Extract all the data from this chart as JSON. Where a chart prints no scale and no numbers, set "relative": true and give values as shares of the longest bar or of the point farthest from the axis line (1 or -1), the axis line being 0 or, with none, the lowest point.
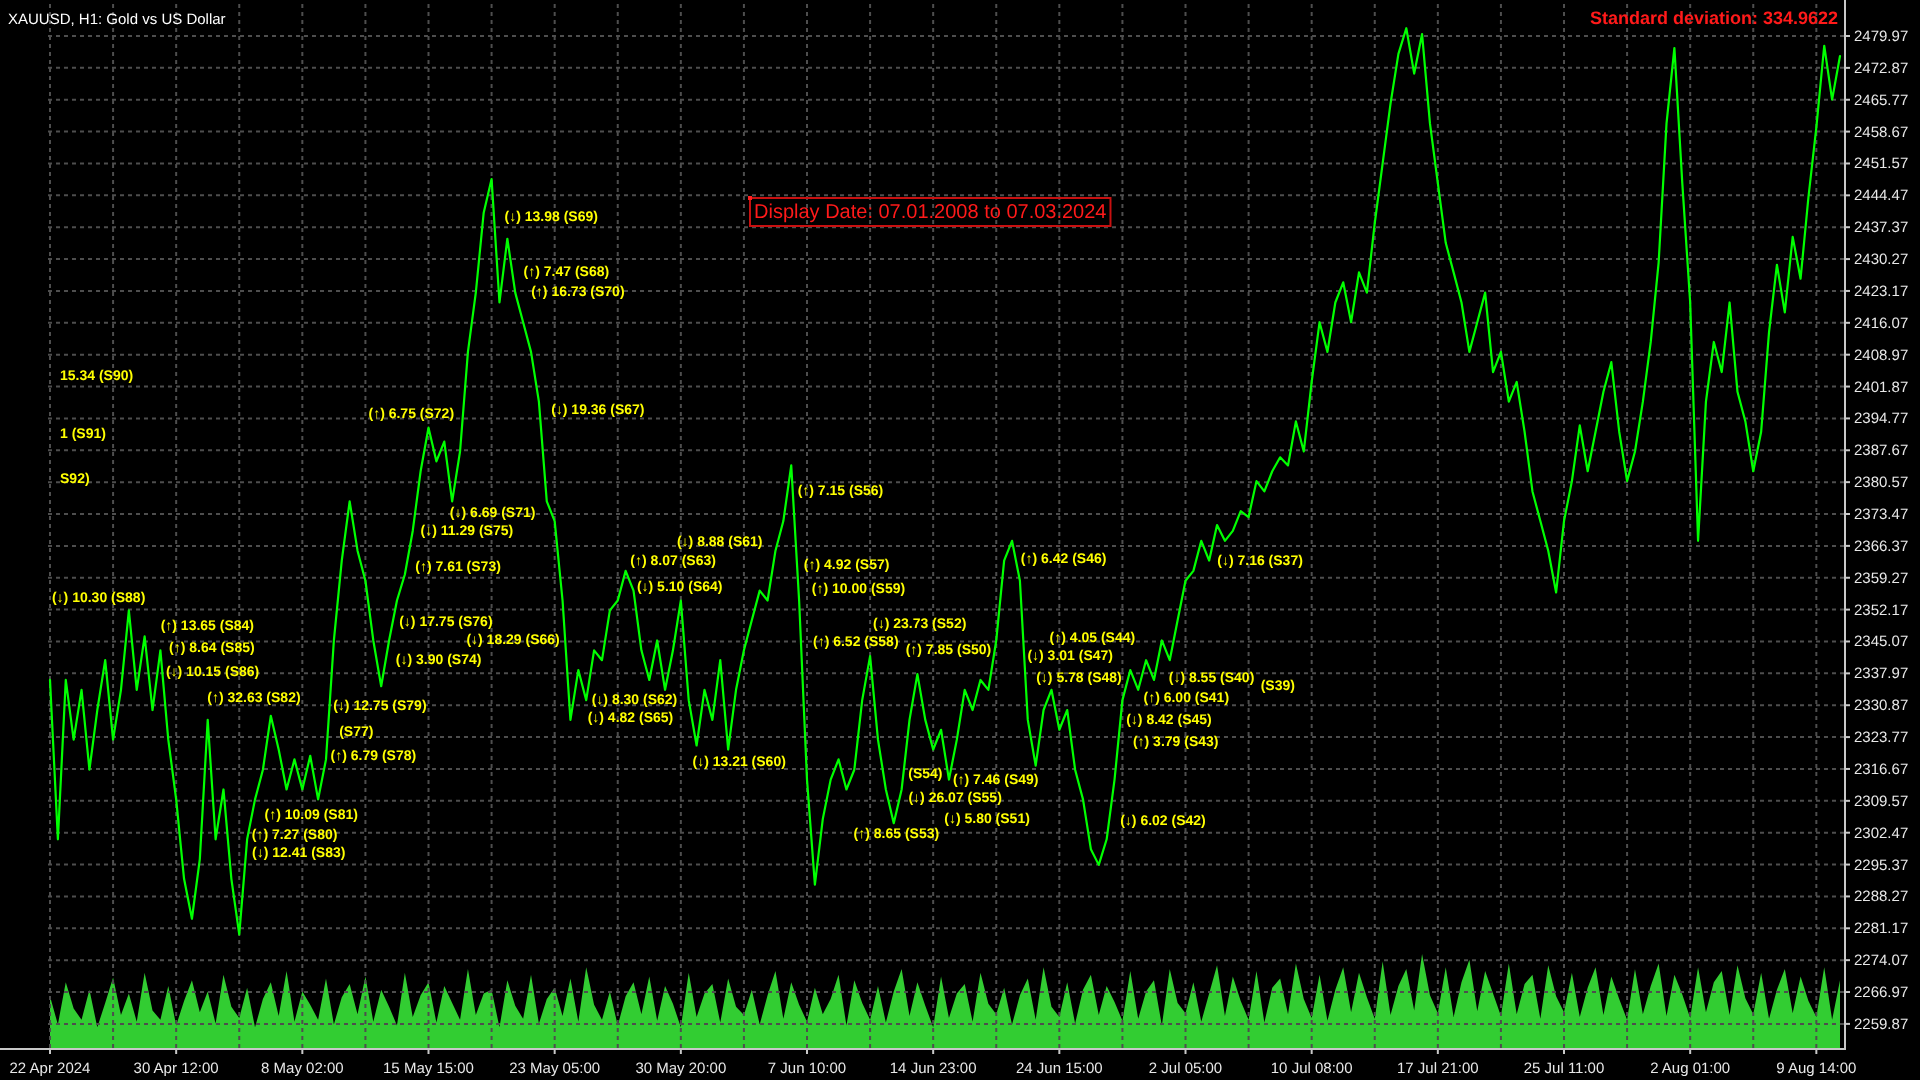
{
  "chart_data": [
    {
      "type": "line",
      "title": "XAUUSD, H1: Gold vs US Dollar",
      "annotations": [
        "Standard deviation: 334.9622",
        "Display Date: 07.01.2008 to 07.03.2024",
        "(↓) 13.98 (S69)",
        "(↑) 7.47 (S68)",
        "(↑) 16.73 (S70)",
        "(↓) 19.36 (S67)",
        "(↑) 6.75 (S72)",
        "(↓) 6.69 (S71)",
        "(↓) 11.29 (S75)",
        "(↑) 7.61 (S73)",
        "(↓) 17.75 (S76)",
        "(↓) 3.90 (S74)",
        "(↑) 13.65 (S84)",
        "(↑) 8.64 (S85)",
        "(↓) 10.15 (S86)",
        "(↓) 10.30 (S88)",
        "(↑) 32.63 (S82)",
        "(↓) 12.75 (S79)",
        "(↑) 6.79 (S78)",
        "(S77)",
        "(↑) 10.09 (S81)",
        "(↑) 7.27 (S80)",
        "(↓) 12.41 (S83)",
        "(↑) 8.07 (S63)",
        "(↓) 5.10 (S64)",
        "(↑) 10.00 (S59)",
        "(↑) 4.92 (S57)",
        "(↓) 8.88 (S61)",
        "(↓) 8.30 (S62)",
        "(↓) 18.29 (S66)",
        "(↓) 4.82 (S65)",
        "(↓) 13.21 (S60)",
        "(↑) 6.52 (S58)",
        "(↑) 7.15 (S56)",
        "(↓) 23.73 (S52)",
        "(↑) 7.85 (S50)",
        "(↓) 5.78 (S48)",
        "(↓) 3.01 (S47)",
        "(↑) 4.05 (S44)",
        "(↓) 8.42 (S45)",
        "(↑) 3.79 (S43)",
        "(↑) 7.46 (S49)",
        "(↑) 6.42 (S46)",
        "(↓) 6.02 (S42)",
        "(↑) 6.00 (S41)",
        "(↓) 8.55 (S40)",
        "(S39)",
        "(↓) 7.16 (S37)",
        "(↑) 8.65 (S53)",
        "(↓) 26.07 (S55)",
        "(S54)",
        "(↓) 5.80 (S51)",
        "15.34 (S90)",
        "1 (S91)",
        "S92)"
      ],
      "categories": [
        "22 Apr 2024",
        null,
        null,
        null,
        null,
        null,
        null,
        null,
        null,
        null,
        null,
        null,
        null,
        null,
        null,
        null,
        "30 Apr 12:00",
        null,
        null,
        null,
        null,
        null,
        null,
        null,
        null,
        null,
        null,
        null,
        null,
        null,
        null,
        null,
        "8 May 02:00",
        null,
        null,
        null,
        null,
        null,
        null,
        null,
        null,
        null,
        null,
        null,
        null,
        null,
        null,
        null,
        "15 May 15:00",
        null,
        null,
        null,
        null,
        null,
        null,
        null,
        null,
        null,
        null,
        null,
        null,
        null,
        null,
        null,
        "23 May 05:00",
        null,
        null,
        null,
        null,
        null,
        null,
        null,
        null,
        null,
        null,
        null,
        null,
        null,
        null,
        null,
        "30 May 20:00",
        null,
        null,
        null,
        null,
        null,
        null,
        null,
        null,
        null,
        null,
        null,
        null,
        null,
        null,
        null,
        "7 Jun 10:00",
        null,
        null,
        null,
        null,
        null,
        null,
        null,
        null,
        null,
        null,
        null,
        null,
        null,
        null,
        null,
        "14 Jun 23:00",
        null,
        null,
        null,
        null,
        null,
        null,
        null,
        null,
        null,
        null,
        null,
        null,
        null,
        null,
        null,
        "24 Jun 15:00",
        null,
        null,
        null,
        null,
        null,
        null,
        null,
        null,
        null,
        null,
        null,
        null,
        null,
        null,
        null,
        "2 Jul 05:00",
        null,
        null,
        null,
        null,
        null,
        null,
        null,
        null,
        null,
        null,
        null,
        null,
        null,
        null,
        null,
        "10 Jul 08:00",
        null,
        null,
        null,
        null,
        null,
        null,
        null,
        null,
        null,
        null,
        null,
        null,
        null,
        null,
        null,
        "17 Jul 21:00",
        null,
        null,
        null,
        null,
        null,
        null,
        null,
        null,
        null,
        null,
        null,
        null,
        null,
        null,
        null,
        "25 Jul 11:00",
        null,
        null,
        null,
        null,
        null,
        null,
        null,
        null,
        null,
        null,
        null,
        null,
        null,
        null,
        null,
        "2 Aug 01:00",
        null,
        null,
        null,
        null,
        null,
        null,
        null,
        null,
        null,
        null,
        null,
        null,
        null,
        null,
        null,
        "9 Aug 14:00",
        null,
        null,
        null
      ],
      "series": [
        {
          "color": "#00ff00",
          "values": [
            2336.5,
            2301.0,
            2336.5,
            2323.2,
            2334.3,
            2316.5,
            2329.8,
            2340.9,
            2323.2,
            2334.3,
            2352.0,
            2334.3,
            2346.2,
            2329.8,
            2343.1,
            2323.2,
            2309.9,
            2292.2,
            2283.3,
            2296.6,
            2327.6,
            2301.0,
            2312.1,
            2292.2,
            2279.8,
            2301.0,
            2309.9,
            2316.5,
            2328.5,
            2321.0,
            2312.1,
            2318.8,
            2312.1,
            2319.6,
            2309.9,
            2318.8,
            2345.3,
            2363.1,
            2376.3,
            2365.3,
            2358.6,
            2345.3,
            2335.1,
            2345.3,
            2354.2,
            2360.0,
            2369.7,
            2383.0,
            2392.7,
            2385.2,
            2389.6,
            2376.3,
            2387.4,
            2409.6,
            2422.8,
            2440.6,
            2448.1,
            2420.6,
            2434.8,
            2422.8,
            2416.2,
            2409.6,
            2398.5,
            2376.3,
            2371.9,
            2354.2,
            2327.6,
            2338.7,
            2332.0,
            2343.1,
            2340.9,
            2352.0,
            2354.2,
            2360.8,
            2356.4,
            2343.1,
            2336.5,
            2345.3,
            2334.3,
            2343.1,
            2354.2,
            2332.0,
            2321.9,
            2334.3,
            2327.6,
            2340.9,
            2321.0,
            2334.3,
            2343.1,
            2349.8,
            2356.4,
            2354.2,
            2365.3,
            2371.9,
            2384.3,
            2354.2,
            2314.3,
            2290.9,
            2305.5,
            2314.3,
            2318.8,
            2312.1,
            2316.5,
            2332.0,
            2341.8,
            2323.2,
            2312.1,
            2304.6,
            2312.1,
            2327.6,
            2337.8,
            2327.6,
            2321.0,
            2325.4,
            2314.3,
            2323.2,
            2334.3,
            2329.8,
            2336.5,
            2334.3,
            2345.3,
            2363.1,
            2367.5,
            2358.6,
            2327.6,
            2317.4,
            2329.8,
            2334.3,
            2325.4,
            2329.8,
            2316.5,
            2309.9,
            2298.8,
            2295.3,
            2301.0,
            2314.3,
            2332.0,
            2338.7,
            2334.3,
            2340.9,
            2336.5,
            2345.3,
            2340.9,
            2349.8,
            2358.6,
            2360.8,
            2367.5,
            2363.1,
            2371.0,
            2367.5,
            2369.7,
            2374.1,
            2372.8,
            2380.8,
            2378.5,
            2383.0,
            2386.1,
            2384.3,
            2394.1,
            2387.4,
            2402.9,
            2416.2,
            2409.6,
            2420.6,
            2425.1,
            2416.2,
            2427.3,
            2422.8,
            2438.3,
            2451.6,
            2464.9,
            2476.0,
            2481.7,
            2471.6,
            2480.4,
            2460.5,
            2447.2,
            2433.9,
            2427.3,
            2420.6,
            2409.6,
            2416.2,
            2422.8,
            2405.1,
            2409.6,
            2398.5,
            2402.9,
            2391.8,
            2378.5,
            2371.9,
            2365.3,
            2356.0,
            2371.9,
            2380.8,
            2393.2,
            2383.0,
            2391.8,
            2400.7,
            2407.3,
            2391.8,
            2380.8,
            2387.4,
            2398.5,
            2411.8,
            2429.5,
            2460.5,
            2477.3,
            2447.2,
            2420.6,
            2367.5,
            2398.5,
            2411.8,
            2405.1,
            2420.6,
            2400.7,
            2394.1,
            2383.0,
            2391.8,
            2414.0,
            2429.0,
            2418.4,
            2435.2,
            2425.9,
            2444.1,
            2459.6,
            2477.8,
            2465.8,
            2475.5
          ]
        }
      ],
      "ylim": [
        2254.5,
        2487.1
      ],
      "yticks": [
        2259.87,
        2266.97,
        2274.07,
        2281.17,
        2288.27,
        2295.37,
        2302.47,
        2309.57,
        2316.67,
        2323.77,
        2330.87,
        2337.97,
        2345.07,
        2352.17,
        2359.27,
        2366.37,
        2373.47,
        2380.57,
        2387.67,
        2394.77,
        2401.87,
        2408.97,
        2416.07,
        2423.17,
        2430.27,
        2437.37,
        2444.47,
        2451.57,
        2458.67,
        2465.77,
        2472.87,
        2479.97
      ],
      "grid": true
    },
    {
      "type": "area",
      "relative": true,
      "color": "#32cd32",
      "categories": [
        null,
        null,
        null,
        null,
        null,
        null,
        null,
        null,
        null,
        null,
        null,
        null,
        null,
        null,
        null,
        null,
        null,
        null,
        null,
        null,
        null,
        null,
        null,
        null,
        null,
        null,
        null,
        null,
        null,
        null,
        null,
        null,
        null,
        null,
        null,
        null,
        null,
        null,
        null,
        null,
        null,
        null,
        null,
        null,
        null,
        null,
        null,
        null,
        null,
        null,
        null,
        null,
        null,
        null,
        null,
        null,
        null,
        null,
        null,
        null,
        null,
        null,
        null,
        null,
        null,
        null,
        null,
        null,
        null,
        null,
        null,
        null,
        null,
        null,
        null,
        null,
        null,
        null,
        null,
        null,
        null,
        null,
        null,
        null,
        null,
        null,
        null,
        null,
        null,
        null,
        null,
        null,
        null,
        null,
        null,
        null,
        null,
        null,
        null,
        null,
        null,
        null,
        null,
        null,
        null,
        null,
        null,
        null,
        null,
        null,
        null,
        null,
        null,
        null,
        null,
        null,
        null,
        null,
        null,
        null,
        null,
        null,
        null,
        null,
        null,
        null,
        null,
        null,
        null,
        null,
        null,
        null,
        null,
        null,
        null,
        null,
        null,
        null,
        null,
        null,
        null,
        null,
        null,
        null,
        null,
        null,
        null,
        null,
        null,
        null,
        null,
        null,
        null,
        null,
        null,
        null,
        null,
        null,
        null,
        null,
        null,
        null,
        null,
        null,
        null,
        null,
        null,
        null,
        null,
        null,
        null,
        null,
        null,
        null,
        null,
        null,
        null,
        null,
        null,
        null,
        null,
        null,
        null,
        null,
        null,
        null,
        null,
        null,
        null,
        null,
        null,
        null,
        null,
        null,
        null,
        null,
        null,
        null,
        null,
        null,
        null,
        null,
        null,
        null,
        null,
        null,
        null,
        null,
        null,
        null,
        null,
        null,
        null,
        null,
        null,
        null,
        null,
        null,
        null,
        null,
        null,
        null,
        null,
        null,
        null,
        null,
        null,
        null
      ],
      "values": [
        0.55,
        0.25,
        0.7,
        0.42,
        0.3,
        0.62,
        0.22,
        0.48,
        0.75,
        0.35,
        0.58,
        0.28,
        0.8,
        0.4,
        0.3,
        0.66,
        0.24,
        0.5,
        0.72,
        0.38,
        0.6,
        0.26,
        0.78,
        0.44,
        0.32,
        0.64,
        0.22,
        0.52,
        0.7,
        0.34,
        0.82,
        0.28,
        0.6,
        0.46,
        0.3,
        0.74,
        0.25,
        0.54,
        0.68,
        0.36,
        0.76,
        0.28,
        0.62,
        0.44,
        0.24,
        0.8,
        0.33,
        0.56,
        0.7,
        0.27,
        0.66,
        0.48,
        0.3,
        0.84,
        0.35,
        0.58,
        0.62,
        0.22,
        0.72,
        0.45,
        0.31,
        0.78,
        0.26,
        0.52,
        0.64,
        0.34,
        0.74,
        0.28,
        0.86,
        0.46,
        0.3,
        0.6,
        0.24,
        0.55,
        0.7,
        0.36,
        0.76,
        0.29,
        0.66,
        0.47,
        0.22,
        0.8,
        0.33,
        0.58,
        0.68,
        0.27,
        0.74,
        0.44,
        0.35,
        0.62,
        0.25,
        0.56,
        0.82,
        0.31,
        0.7,
        0.46,
        0.28,
        0.64,
        0.36,
        0.52,
        0.78,
        0.24,
        0.72,
        0.48,
        0.3,
        0.66,
        0.27,
        0.6,
        0.84,
        0.34,
        0.7,
        0.45,
        0.22,
        0.76,
        0.32,
        0.58,
        0.68,
        0.28,
        0.8,
        0.47,
        0.36,
        0.64,
        0.25,
        0.56,
        0.74,
        0.3,
        0.86,
        0.44,
        0.33,
        0.7,
        0.26,
        0.62,
        0.78,
        0.35,
        0.66,
        0.49,
        0.29,
        0.82,
        0.31,
        0.6,
        0.72,
        0.24,
        0.84,
        0.48,
        0.37,
        0.7,
        0.28,
        0.58,
        0.88,
        0.34,
        0.76,
        0.5,
        0.3,
        0.82,
        0.27,
        0.64,
        0.74,
        0.36,
        0.9,
        0.52,
        0.32,
        0.78,
        0.29,
        0.62,
        0.86,
        0.38,
        0.8,
        0.54,
        0.31,
        0.92,
        0.35,
        0.66,
        0.84,
        0.4,
        1.0,
        0.56,
        0.37,
        0.86,
        0.33,
        0.7,
        0.94,
        0.39,
        0.82,
        0.58,
        0.34,
        0.9,
        0.36,
        0.68,
        0.78,
        0.31,
        0.88,
        0.55,
        0.38,
        0.8,
        0.33,
        0.64,
        0.86,
        0.35,
        0.76,
        0.52,
        0.3,
        0.84,
        0.36,
        0.66,
        0.9,
        0.34,
        0.78,
        0.57,
        0.32,
        0.86,
        0.38,
        0.7,
        0.82,
        0.35,
        0.88,
        0.53,
        0.36,
        0.8,
        0.31,
        0.62,
        0.84,
        0.37,
        0.76,
        0.5,
        0.33,
        0.86,
        0.3,
        0.72
      ]
    }
  ]
}
